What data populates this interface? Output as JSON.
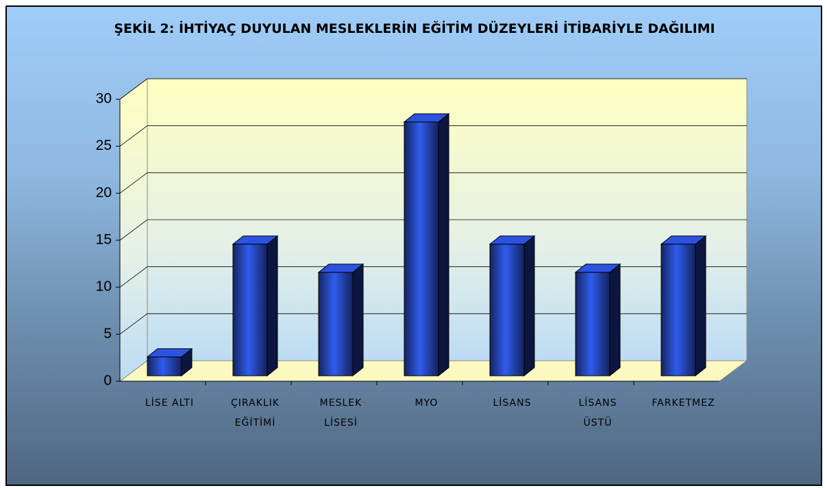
{
  "chart_data": {
    "type": "bar3d",
    "title": "ŞEKİL 2: İHTİYAÇ DUYULAN MESLEKLERİN  EĞİTİM DÜZEYLERİ  İTİBARİYLE DAĞILIMI",
    "categories": [
      "LİSE ALTI",
      "ÇIRAKLIK EĞİTİMİ",
      "MESLEK LİSESİ",
      "MYO",
      "LİSANS",
      "LİSANS ÜSTÜ",
      "FARKETMEZ"
    ],
    "values": [
      2,
      14,
      11,
      27,
      14,
      11,
      14
    ],
    "color": "#2a4ed8",
    "ylim": [
      0,
      30
    ],
    "yticks": [
      0,
      5,
      10,
      15,
      20,
      25,
      30
    ],
    "grid": true
  }
}
